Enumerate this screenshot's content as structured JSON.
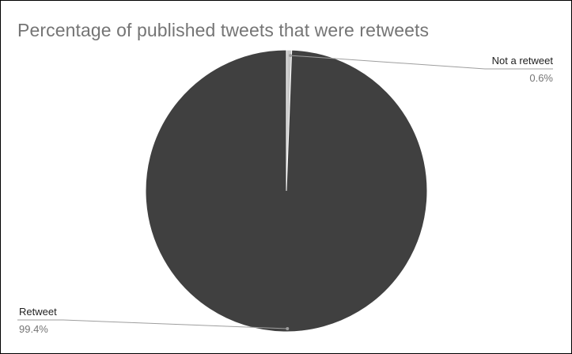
{
  "chart_data": {
    "type": "pie",
    "title": "Percentage of published tweets that were retweets",
    "slices": [
      {
        "label": "Not a retweet",
        "value": 0.6,
        "display": "0.6%",
        "color": "#c8c8c8"
      },
      {
        "label": "Retweet",
        "value": 99.4,
        "display": "99.4%",
        "color": "#404040"
      }
    ],
    "legend": "none",
    "label_style": "callout"
  }
}
